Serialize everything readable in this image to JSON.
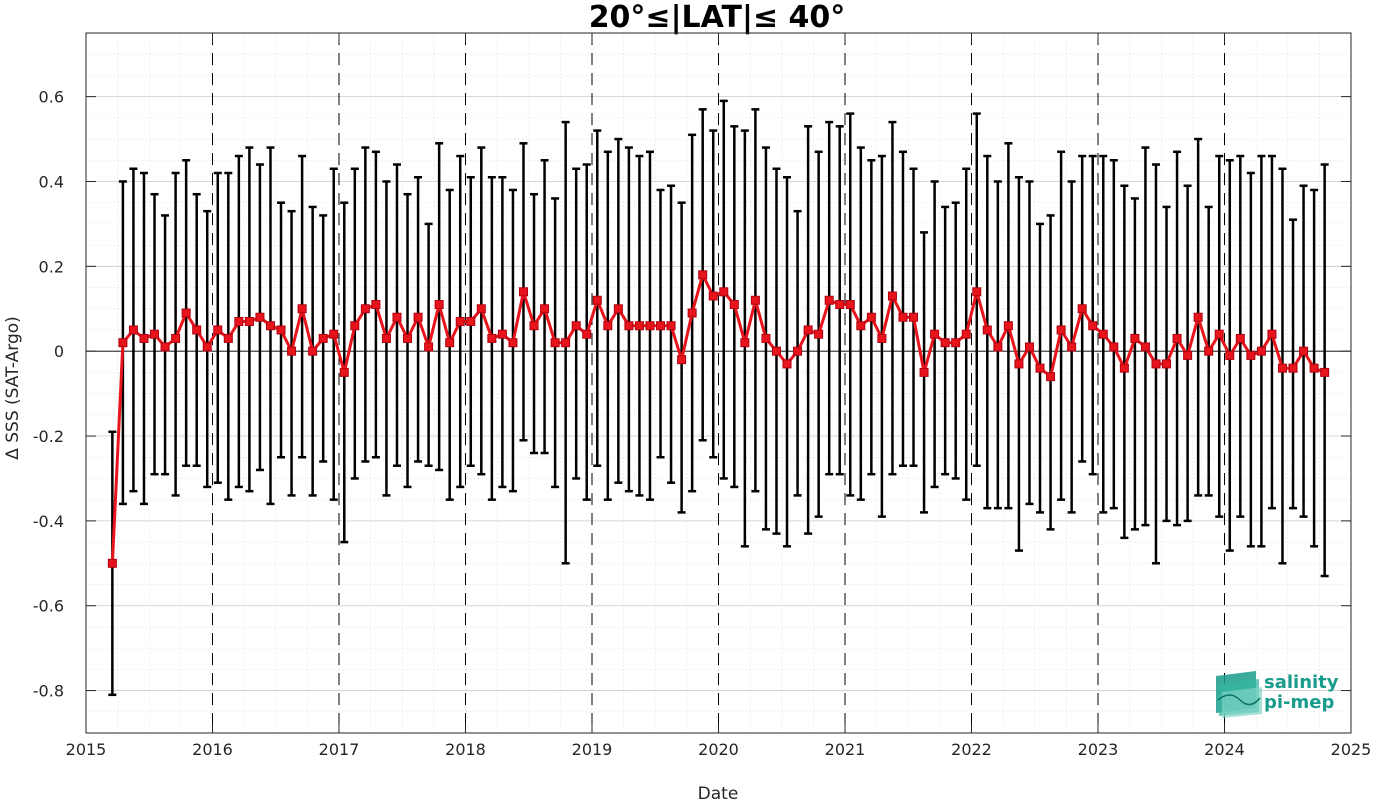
{
  "chart_data": {
    "type": "line",
    "title": "20°≤|LAT|≤ 40°",
    "xlabel": "Date",
    "ylabel": "Δ SSS (SAT-Argo)",
    "xlim": [
      2015,
      2025
    ],
    "ylim": [
      -0.9,
      0.75
    ],
    "xticks": [
      "2015",
      "2016",
      "2017",
      "2018",
      "2019",
      "2020",
      "2021",
      "2022",
      "2023",
      "2024",
      "2025"
    ],
    "yticks": [
      "-0.8",
      "-0.6",
      "-0.4",
      "-0.2",
      "0",
      "0.2",
      "0.4",
      "0.6"
    ],
    "grid": true,
    "series": [
      {
        "color": "#e8141c",
        "marker": "square",
        "errorbar_color": "#000000",
        "x": [
          "2015-03",
          "2015-04",
          "2015-05",
          "2015-06",
          "2015-07",
          "2015-08",
          "2015-09",
          "2015-10",
          "2015-11",
          "2015-12",
          "2016-01",
          "2016-02",
          "2016-03",
          "2016-04",
          "2016-05",
          "2016-06",
          "2016-07",
          "2016-08",
          "2016-09",
          "2016-10",
          "2016-11",
          "2016-12",
          "2017-01",
          "2017-02",
          "2017-03",
          "2017-04",
          "2017-05",
          "2017-06",
          "2017-07",
          "2017-08",
          "2017-09",
          "2017-10",
          "2017-11",
          "2017-12",
          "2018-01",
          "2018-02",
          "2018-03",
          "2018-04",
          "2018-05",
          "2018-06",
          "2018-07",
          "2018-08",
          "2018-09",
          "2018-10",
          "2018-11",
          "2018-12",
          "2019-01",
          "2019-02",
          "2019-03",
          "2019-04",
          "2019-05",
          "2019-06",
          "2019-07",
          "2019-08",
          "2019-09",
          "2019-10",
          "2019-11",
          "2019-12",
          "2020-01",
          "2020-02",
          "2020-03",
          "2020-04",
          "2020-05",
          "2020-06",
          "2020-07",
          "2020-08",
          "2020-09",
          "2020-10",
          "2020-11",
          "2020-12",
          "2021-01",
          "2021-02",
          "2021-03",
          "2021-04",
          "2021-05",
          "2021-06",
          "2021-07",
          "2021-08",
          "2021-09",
          "2021-10",
          "2021-11",
          "2021-12",
          "2022-01",
          "2022-02",
          "2022-03",
          "2022-04",
          "2022-05",
          "2022-06",
          "2022-07",
          "2022-08",
          "2022-09",
          "2022-10",
          "2022-11",
          "2022-12",
          "2023-01",
          "2023-02",
          "2023-03",
          "2023-04",
          "2023-05",
          "2023-06",
          "2023-07",
          "2023-08",
          "2023-09",
          "2023-10",
          "2023-11",
          "2023-12",
          "2024-01",
          "2024-02",
          "2024-03",
          "2024-04",
          "2024-05",
          "2024-06",
          "2024-07",
          "2024-08",
          "2024-09",
          "2024-10"
        ],
        "y": [
          -0.5,
          0.02,
          0.05,
          0.03,
          0.04,
          0.01,
          0.03,
          0.09,
          0.05,
          0.01,
          0.05,
          0.03,
          0.07,
          0.07,
          0.08,
          0.06,
          0.05,
          0.0,
          0.1,
          0.0,
          0.03,
          0.04,
          -0.05,
          0.06,
          0.1,
          0.11,
          0.03,
          0.08,
          0.03,
          0.08,
          0.01,
          0.11,
          0.02,
          0.07,
          0.07,
          0.1,
          0.03,
          0.04,
          0.02,
          0.14,
          0.06,
          0.1,
          0.02,
          0.02,
          0.06,
          0.04,
          0.12,
          0.06,
          0.1,
          0.06,
          0.06,
          0.06,
          0.06,
          0.06,
          -0.02,
          0.09,
          0.18,
          0.13,
          0.14,
          0.11,
          0.02,
          0.12,
          0.03,
          0.0,
          -0.03,
          0.0,
          0.05,
          0.04,
          0.12,
          0.11,
          0.11,
          0.06,
          0.08,
          0.03,
          0.13,
          0.08,
          0.08,
          -0.05,
          0.04,
          0.02,
          0.02,
          0.04,
          0.14,
          0.05,
          0.01,
          0.06,
          -0.03,
          0.01,
          -0.04,
          -0.06,
          0.05,
          0.01,
          0.1,
          0.06,
          0.04,
          0.01,
          -0.04,
          0.03,
          0.01,
          -0.03,
          -0.03,
          0.03,
          -0.01,
          0.08,
          0.0,
          0.04,
          -0.01,
          0.03,
          -0.01,
          0.0,
          0.04,
          -0.04,
          -0.04,
          0.0,
          -0.04,
          -0.05
        ],
        "err_low": [
          -0.81,
          -0.36,
          -0.33,
          -0.36,
          -0.29,
          -0.29,
          -0.34,
          -0.27,
          -0.27,
          -0.32,
          -0.31,
          -0.35,
          -0.32,
          -0.33,
          -0.28,
          -0.36,
          -0.25,
          -0.34,
          -0.25,
          -0.34,
          -0.26,
          -0.35,
          -0.45,
          -0.3,
          -0.26,
          -0.25,
          -0.34,
          -0.27,
          -0.32,
          -0.26,
          -0.27,
          -0.28,
          -0.35,
          -0.32,
          -0.27,
          -0.29,
          -0.35,
          -0.32,
          -0.33,
          -0.21,
          -0.24,
          -0.24,
          -0.32,
          -0.5,
          -0.3,
          -0.35,
          -0.27,
          -0.35,
          -0.31,
          -0.33,
          -0.34,
          -0.35,
          -0.25,
          -0.31,
          -0.38,
          -0.33,
          -0.21,
          -0.25,
          -0.3,
          -0.32,
          -0.46,
          -0.33,
          -0.42,
          -0.43,
          -0.46,
          -0.34,
          -0.43,
          -0.39,
          -0.29,
          -0.29,
          -0.34,
          -0.35,
          -0.29,
          -0.39,
          -0.29,
          -0.27,
          -0.27,
          -0.38,
          -0.32,
          -0.29,
          -0.3,
          -0.35,
          -0.27,
          -0.37,
          -0.37,
          -0.37,
          -0.47,
          -0.36,
          -0.38,
          -0.42,
          -0.35,
          -0.38,
          -0.26,
          -0.29,
          -0.38,
          -0.37,
          -0.44,
          -0.42,
          -0.41,
          -0.5,
          -0.4,
          -0.41,
          -0.4,
          -0.34,
          -0.34,
          -0.39,
          -0.47,
          -0.39,
          -0.46,
          -0.46,
          -0.37,
          -0.5,
          -0.37,
          -0.39,
          -0.46,
          -0.53
        ],
        "err_high": [
          -0.19,
          0.4,
          0.43,
          0.42,
          0.37,
          0.32,
          0.42,
          0.45,
          0.37,
          0.33,
          0.42,
          0.42,
          0.46,
          0.48,
          0.44,
          0.48,
          0.35,
          0.33,
          0.46,
          0.34,
          0.32,
          0.43,
          0.35,
          0.43,
          0.48,
          0.47,
          0.4,
          0.44,
          0.37,
          0.41,
          0.3,
          0.49,
          0.38,
          0.46,
          0.41,
          0.48,
          0.41,
          0.41,
          0.38,
          0.49,
          0.37,
          0.45,
          0.36,
          0.54,
          0.43,
          0.44,
          0.52,
          0.47,
          0.5,
          0.48,
          0.46,
          0.47,
          0.38,
          0.39,
          0.35,
          0.51,
          0.57,
          0.52,
          0.59,
          0.53,
          0.52,
          0.57,
          0.48,
          0.43,
          0.41,
          0.33,
          0.53,
          0.47,
          0.54,
          0.53,
          0.56,
          0.48,
          0.45,
          0.46,
          0.54,
          0.47,
          0.43,
          0.28,
          0.4,
          0.34,
          0.35,
          0.43,
          0.56,
          0.46,
          0.4,
          0.49,
          0.41,
          0.4,
          0.3,
          0.32,
          0.47,
          0.4,
          0.46,
          0.46,
          0.46,
          0.45,
          0.39,
          0.36,
          0.48,
          0.44,
          0.34,
          0.47,
          0.39,
          0.5,
          0.34,
          0.46,
          0.45,
          0.46,
          0.42,
          0.46,
          0.46,
          0.43,
          0.31,
          0.39,
          0.38,
          0.44
        ]
      }
    ]
  },
  "logo": {
    "line1": "salinity",
    "line2": "pi-mep",
    "color": "#1a9c8c"
  }
}
